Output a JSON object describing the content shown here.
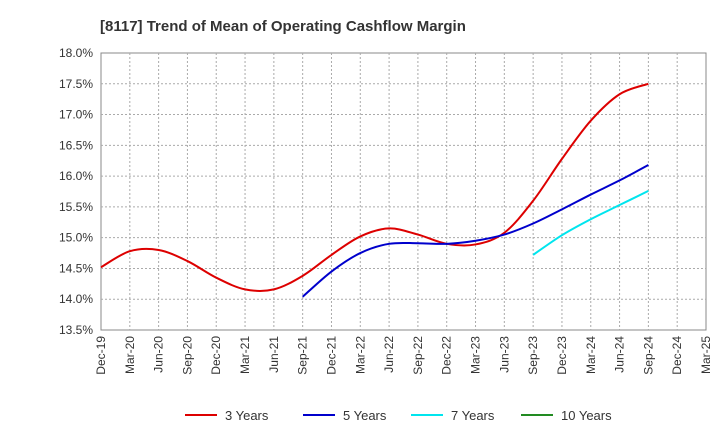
{
  "chart_data": {
    "type": "line",
    "title": "[8117]  Trend of Mean of Operating Cashflow Margin",
    "xlabel": "",
    "ylabel": "",
    "ylim": [
      13.5,
      18.0
    ],
    "y_ticks": [
      "18.0%",
      "17.5%",
      "17.0%",
      "16.5%",
      "16.0%",
      "15.5%",
      "15.0%",
      "14.5%",
      "14.0%",
      "13.5%"
    ],
    "y_tick_values": [
      18.0,
      17.5,
      17.0,
      16.5,
      16.0,
      15.5,
      15.0,
      14.5,
      14.0,
      13.5
    ],
    "categories": [
      "Dec-19",
      "Mar-20",
      "Jun-20",
      "Sep-20",
      "Dec-20",
      "Mar-21",
      "Jun-21",
      "Sep-21",
      "Dec-21",
      "Mar-22",
      "Jun-22",
      "Sep-22",
      "Dec-22",
      "Mar-23",
      "Jun-23",
      "Sep-23",
      "Dec-23",
      "Mar-24",
      "Jun-24",
      "Sep-24",
      "Dec-24",
      "Mar-25"
    ],
    "grid": true,
    "legend_position": "bottom",
    "series": [
      {
        "name": "3 Years",
        "color": "#dd0000",
        "values": [
          14.52,
          14.78,
          14.8,
          14.62,
          14.35,
          14.16,
          14.16,
          14.38,
          14.72,
          15.02,
          15.15,
          15.05,
          14.9,
          14.89,
          15.08,
          15.6,
          16.28,
          16.9,
          17.33,
          17.5,
          null,
          null
        ]
      },
      {
        "name": "5 Years",
        "color": "#0000cc",
        "values": [
          null,
          null,
          null,
          null,
          null,
          null,
          null,
          14.04,
          14.45,
          14.75,
          14.9,
          14.91,
          14.9,
          14.95,
          15.05,
          15.23,
          15.46,
          15.7,
          15.93,
          16.18,
          null,
          null
        ]
      },
      {
        "name": "7 Years",
        "color": "#00e5ee",
        "values": [
          null,
          null,
          null,
          null,
          null,
          null,
          null,
          null,
          null,
          null,
          null,
          null,
          null,
          null,
          null,
          14.72,
          15.04,
          15.3,
          15.53,
          15.76,
          null,
          null
        ]
      },
      {
        "name": "10 Years",
        "color": "#228b22",
        "values": [
          null,
          null,
          null,
          null,
          null,
          null,
          null,
          null,
          null,
          null,
          null,
          null,
          null,
          null,
          null,
          null,
          null,
          null,
          null,
          null,
          null,
          null
        ]
      }
    ]
  }
}
